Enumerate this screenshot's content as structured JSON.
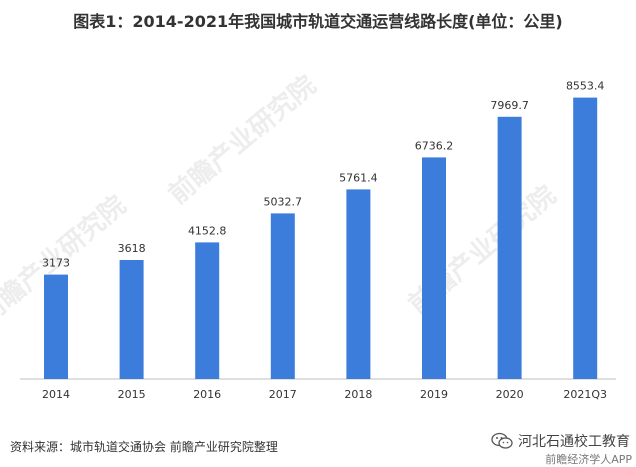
{
  "title": "图表1：2014-2021年我国城市轨道交通运营线路长度(单位：公里)",
  "source_text": "资料来源：城市轨道交通协会 前瞻产业研究院整理",
  "watermark_text": "前瞻产业研究院",
  "brand": {
    "name": "河北石通校工教育",
    "sub": "前瞻经济学人APP",
    "icon": "wechat-icon"
  },
  "colors": {
    "bar": "#3c7ddb",
    "axis": "#bfbfbf",
    "text": "#333333"
  },
  "chart_data": {
    "type": "bar",
    "title": "图表1：2014-2021年我国城市轨道交通运营线路长度(单位：公里)",
    "categories": [
      "2014",
      "2015",
      "2016",
      "2017",
      "2018",
      "2019",
      "2020",
      "2021Q3"
    ],
    "values": [
      3173,
      3618,
      4152.8,
      5032.7,
      5761.4,
      6736.2,
      7969.7,
      8553.4
    ],
    "value_labels": [
      "3173",
      "3618",
      "4152.8",
      "5032.7",
      "5761.4",
      "6736.2",
      "7969.7",
      "8553.4"
    ],
    "xlabel": "",
    "ylabel": "",
    "ylim": [
      0,
      10000
    ],
    "grid": false,
    "legend": "none"
  }
}
